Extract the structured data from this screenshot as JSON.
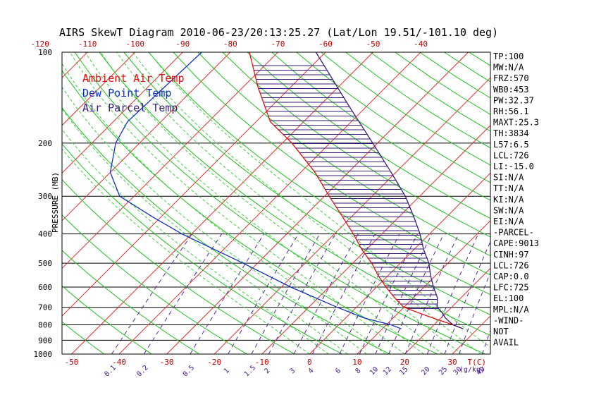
{
  "title": "AIRS SkewT Diagram 2010-06-23/20:13:25.27 (Lat/Lon 19.51/-101.10 deg)",
  "colors": {
    "ambient": "#e01010",
    "dew": "#1030c0",
    "parcel": "#3a1a7a",
    "isotherm": "#e03030",
    "dry_adiabat": "#20c020",
    "moist_adiabat": "#40d040",
    "mixing_ratio": "#5a2a9a",
    "hatch": "#3a1a7a"
  },
  "legend": [
    {
      "label": "Ambient Air Temp",
      "color": "#e01010"
    },
    {
      "label": "Dew Point Temp",
      "color": "#1030c0"
    },
    {
      "label": "Air Parcel Temp",
      "color": "#3a1a7a"
    }
  ],
  "stats": [
    "TP:100",
    "MW:N/A",
    "FRZ:570",
    "WB0:453",
    "PW:32.37",
    "RH:56.1",
    "MAXT:25.3",
    "TH:3834",
    "L57:6.5",
    "LCL:726",
    "LI:-15.0",
    "SI:N/A",
    "TT:N/A",
    "KI:N/A",
    "SW:N/A",
    "EI:N/A",
    "-PARCEL-",
    "CAPE:9013",
    "CINH:97",
    "LCL:726",
    "CAP:0.0",
    "LFC:725",
    "EL:100",
    "MPL:N/A",
    "-WIND-",
    "NOT",
    "AVAIL"
  ],
  "chart_data": {
    "type": "line",
    "title": "AIRS SkewT Diagram 2010-06-23/20:13:25.27 (Lat/Lon 19.51/-101.10 deg)",
    "ylabel": "PRESSURE (MB)",
    "xlabel_unit": "T(C)",
    "mixing_ratio_unit": "(g/kg)",
    "y_scale": "log",
    "ylim": [
      1000,
      100
    ],
    "xlim_bottom": [
      -52,
      38
    ],
    "pressure_ticks": [
      100,
      200,
      300,
      400,
      500,
      600,
      700,
      800,
      900,
      1000
    ],
    "bottom_temp_ticks": [
      -50,
      -40,
      -30,
      -20,
      -10,
      0,
      10,
      20,
      30
    ],
    "top_temp_ticks": [
      -120,
      -110,
      -100,
      -90,
      -80,
      -70,
      -60,
      -50,
      -40
    ],
    "mixing_ratio_ticks": [
      "0.1",
      "0.2",
      "0.5",
      "1",
      "1.5",
      "2",
      "3",
      "4",
      "6",
      "8",
      "10",
      "12",
      "15",
      "20",
      "25",
      "30",
      "40"
    ],
    "grid": true,
    "legend_position": "top-left",
    "series": [
      {
        "name": "Ambient Air Temp",
        "points": [
          [
            100,
            -76
          ],
          [
            130,
            -67
          ],
          [
            170,
            -57
          ],
          [
            200,
            -48
          ],
          [
            250,
            -37
          ],
          [
            300,
            -29
          ],
          [
            350,
            -22
          ],
          [
            400,
            -16
          ],
          [
            450,
            -11
          ],
          [
            500,
            -6
          ],
          [
            550,
            -2
          ],
          [
            600,
            2
          ],
          [
            650,
            6
          ],
          [
            700,
            10
          ],
          [
            750,
            17
          ],
          [
            800,
            24
          ],
          [
            825,
            27
          ]
        ]
      },
      {
        "name": "Dew Point Temp",
        "points": [
          [
            100,
            -86
          ],
          [
            170,
            -87
          ],
          [
            200,
            -85
          ],
          [
            250,
            -80
          ],
          [
            300,
            -73
          ],
          [
            350,
            -62
          ],
          [
            400,
            -52
          ],
          [
            500,
            -33
          ],
          [
            600,
            -18
          ],
          [
            700,
            -4
          ],
          [
            760,
            4
          ],
          [
            800,
            11
          ],
          [
            825,
            14
          ]
        ]
      },
      {
        "name": "Air Parcel Temp",
        "points": [
          [
            100,
            -62
          ],
          [
            150,
            -44
          ],
          [
            200,
            -31
          ],
          [
            250,
            -21
          ],
          [
            300,
            -13
          ],
          [
            350,
            -7
          ],
          [
            400,
            -2
          ],
          [
            450,
            2
          ],
          [
            500,
            6
          ],
          [
            550,
            9
          ],
          [
            600,
            12
          ],
          [
            650,
            15
          ],
          [
            700,
            17
          ],
          [
            726,
            19
          ],
          [
            760,
            21
          ],
          [
            800,
            24
          ],
          [
            825,
            27
          ]
        ]
      }
    ]
  }
}
